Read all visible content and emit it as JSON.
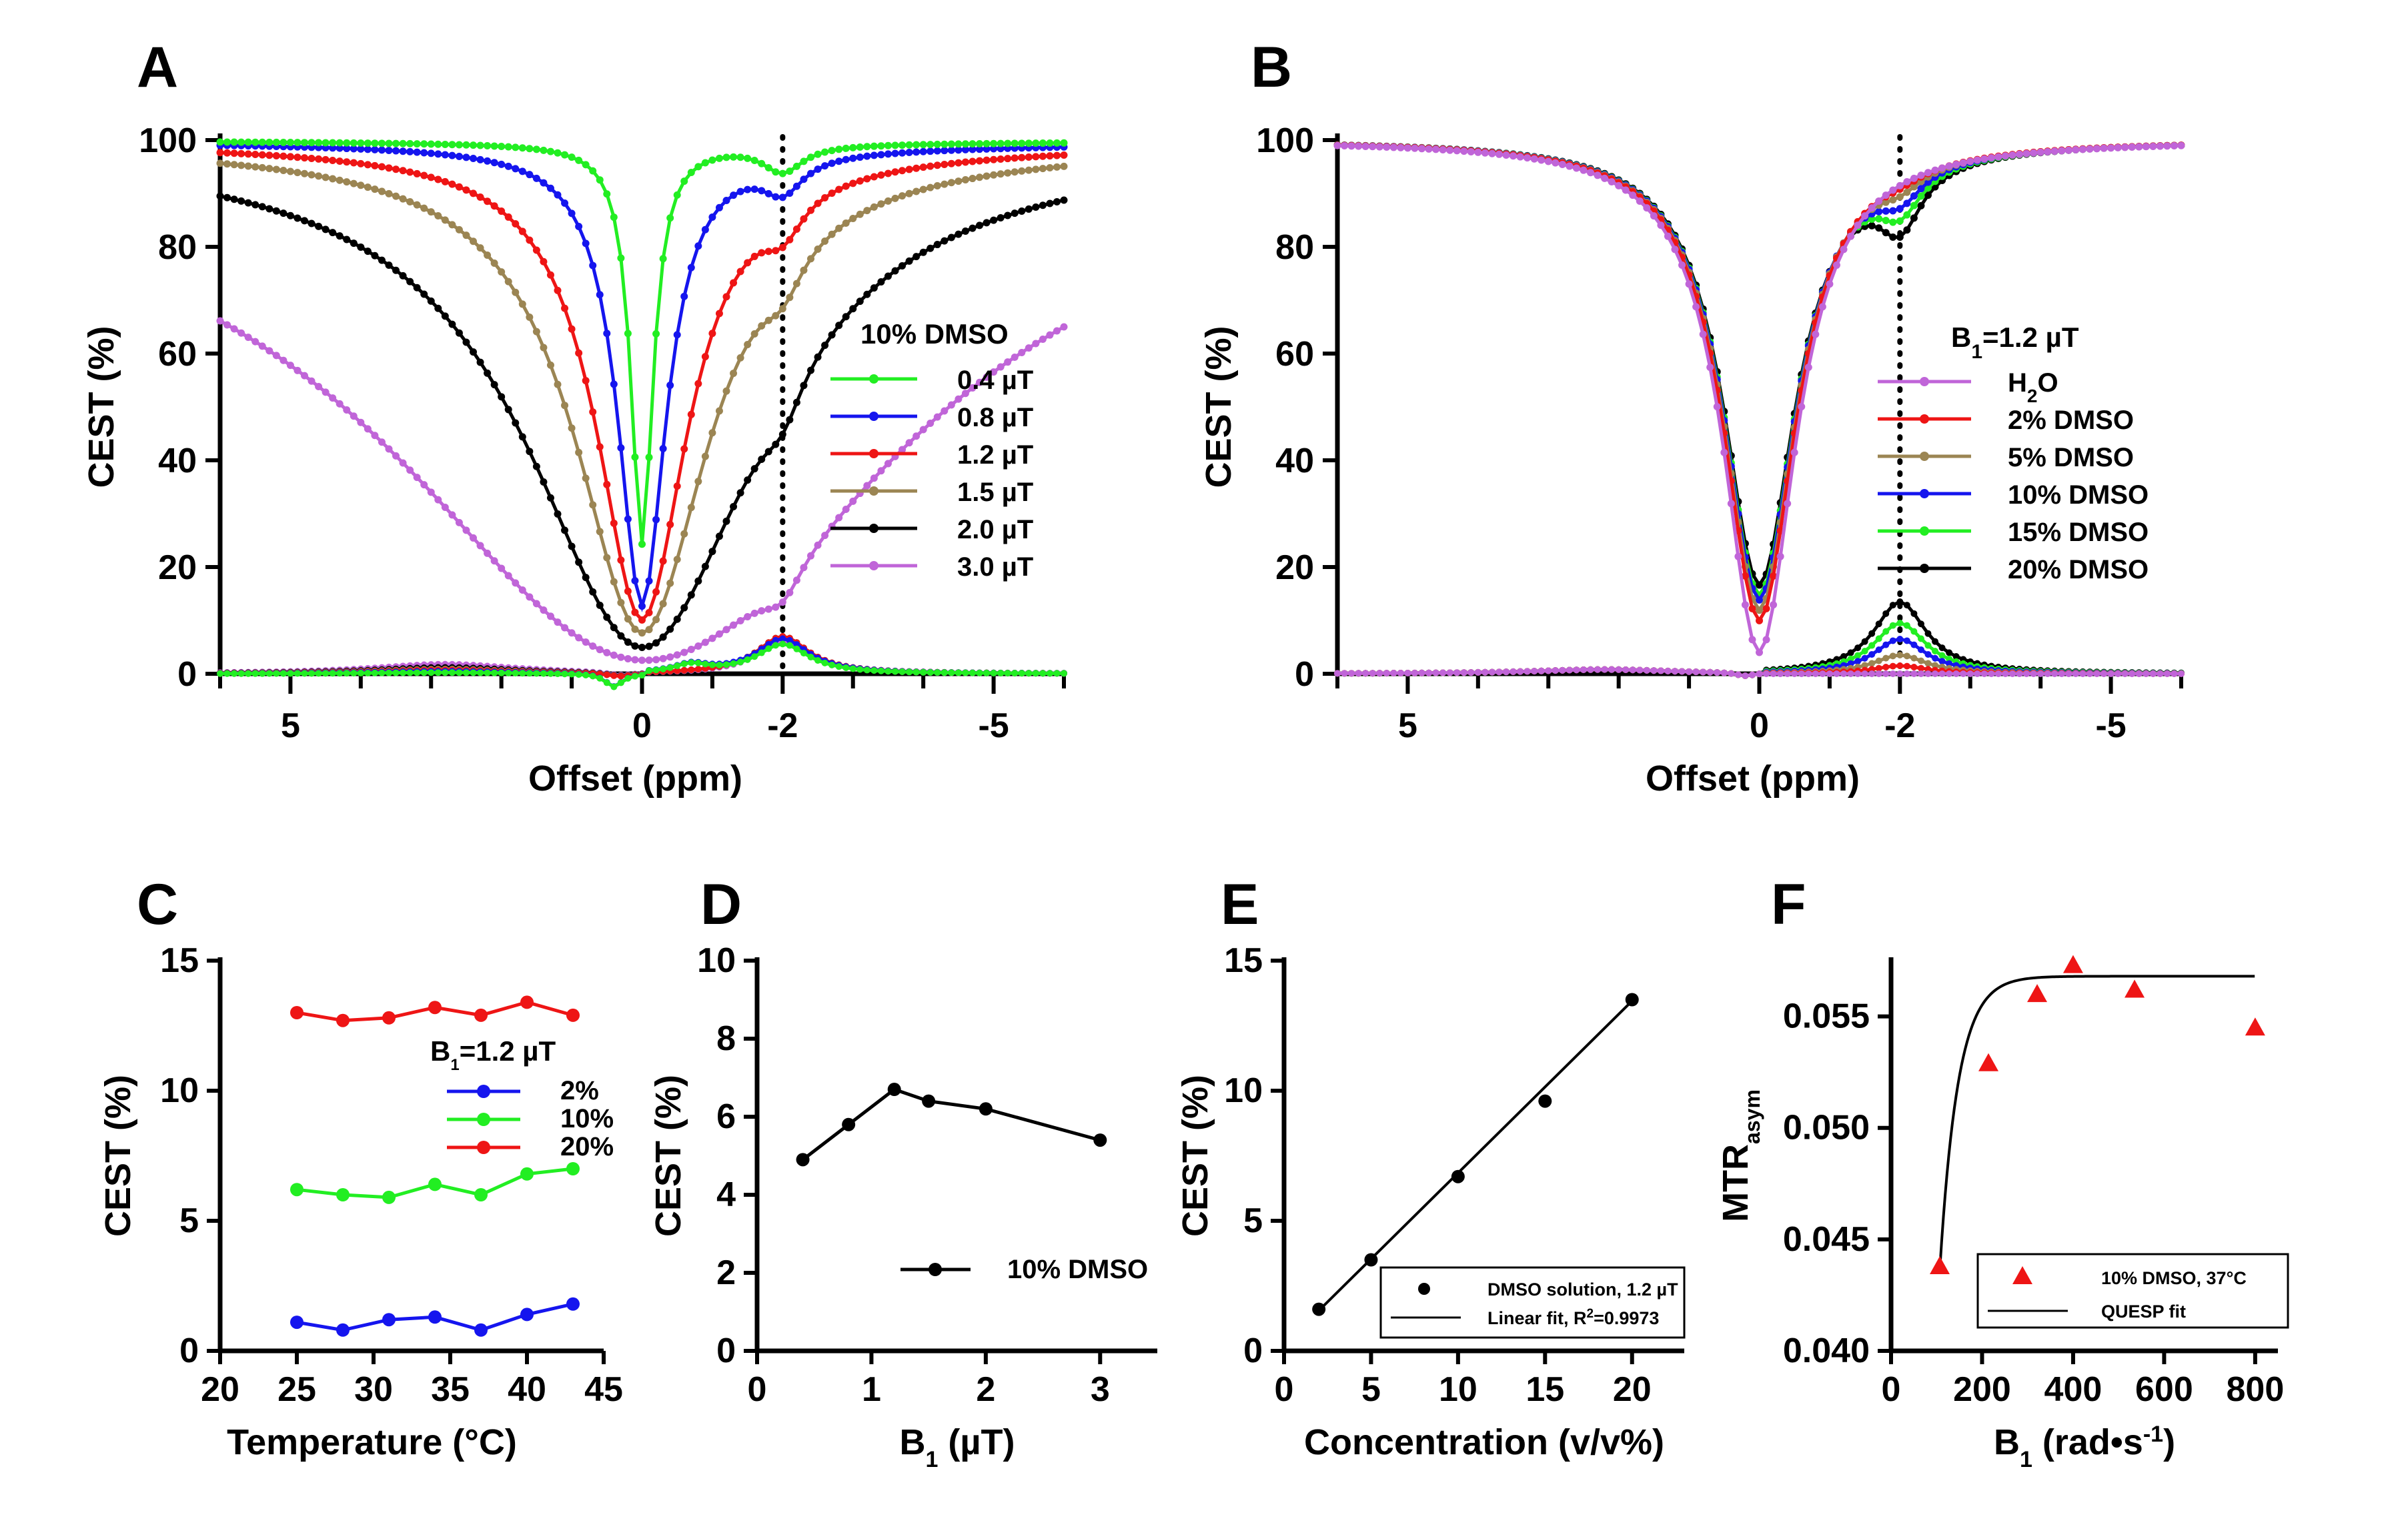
{
  "colors": {
    "green": "#22ee22",
    "blue": "#1515ee",
    "red": "#ee1515",
    "olive": "#9b8553",
    "black": "#000000",
    "purple": "#c065d8"
  },
  "chart_data": [
    {
      "panel": "A",
      "type": "line",
      "xlabel": "Offset (ppm)",
      "ylabel": "CEST (%)",
      "xlim": [
        6,
        -6
      ],
      "ylim": [
        0,
        100
      ],
      "xticks": [
        5,
        0,
        -2,
        -5
      ],
      "xtick_labels": [
        "5",
        "0",
        "-2",
        "-5"
      ],
      "yticks": [
        0,
        20,
        40,
        60,
        80,
        100
      ],
      "vline": -2,
      "legend_title": "10% DMSO",
      "series": [
        {
          "name": "0.4 µT",
          "color_key": "green",
          "b1": 0.4,
          "min": 25,
          "depth2": 5
        },
        {
          "name": "0.8 µT",
          "color_key": "blue",
          "b1": 0.8,
          "min": 14,
          "depth2": 6
        },
        {
          "name": "1.2 µT",
          "color_key": "red",
          "b1": 1.2,
          "min": 12,
          "depth2": 6.5
        },
        {
          "name": "1.5 µT",
          "color_key": "olive",
          "b1": 1.5,
          "min": 10,
          "depth2": 6.5
        },
        {
          "name": "2.0 µT",
          "color_key": "black",
          "b1": 2.0,
          "min": 8,
          "depth2": 6.5
        },
        {
          "name": "3.0 µT",
          "color_key": "purple",
          "b1": 3.0,
          "min": 7,
          "depth2": 5.5
        }
      ]
    },
    {
      "panel": "B",
      "type": "line",
      "xlabel": "Offset (ppm)",
      "ylabel": "CEST (%)",
      "xlim": [
        6,
        -6
      ],
      "ylim": [
        0,
        100
      ],
      "xticks": [
        5,
        0,
        -2,
        -5
      ],
      "xtick_labels": [
        "5",
        "0",
        "-2",
        "-5"
      ],
      "yticks": [
        0,
        20,
        40,
        60,
        80,
        100
      ],
      "vline": -2,
      "legend_title_main": "B",
      "legend_title_sub": "1",
      "legend_title_rest": "=1.2 µT",
      "series": [
        {
          "name_main": "H",
          "name_sub": "2",
          "name_rest": "O",
          "color_key": "purple",
          "depth2": 0,
          "min": 4
        },
        {
          "name_main": "2% DMSO",
          "name_sub": "",
          "name_rest": "",
          "color_key": "red",
          "depth2": 1.5,
          "min": 10
        },
        {
          "name_main": "5% DMSO",
          "name_sub": "",
          "name_rest": "",
          "color_key": "olive",
          "depth2": 3.5,
          "min": 12
        },
        {
          "name_main": "10% DMSO",
          "name_sub": "",
          "name_rest": "",
          "color_key": "blue",
          "depth2": 6.5,
          "min": 14
        },
        {
          "name_main": "15% DMSO",
          "name_sub": "",
          "name_rest": "",
          "color_key": "green",
          "depth2": 9.5,
          "min": 15
        },
        {
          "name_main": "20% DMSO",
          "name_sub": "",
          "name_rest": "",
          "color_key": "black",
          "depth2": 13.5,
          "min": 17
        }
      ]
    },
    {
      "panel": "C",
      "type": "line",
      "xlabel": "Temperature (°C)",
      "ylabel": "CEST (%)",
      "xlim": [
        20,
        45
      ],
      "ylim": [
        0,
        15
      ],
      "xticks": [
        20,
        25,
        30,
        35,
        40,
        45
      ],
      "yticks": [
        0,
        5,
        10,
        15
      ],
      "legend_title_main": "B",
      "legend_title_sub": "1",
      "legend_title_rest": "=1.2 µT",
      "x": [
        25,
        28,
        31,
        34,
        37,
        40,
        43
      ],
      "series": [
        {
          "name": "2%",
          "color_key": "blue",
          "values": [
            1.1,
            0.8,
            1.2,
            1.3,
            0.8,
            1.4,
            1.8
          ]
        },
        {
          "name": "10%",
          "color_key": "green",
          "values": [
            6.2,
            6.0,
            5.9,
            6.4,
            6.0,
            6.8,
            7.0
          ]
        },
        {
          "name": "20%",
          "color_key": "red",
          "values": [
            13.0,
            12.7,
            12.8,
            13.2,
            12.9,
            13.4,
            12.9
          ]
        }
      ]
    },
    {
      "panel": "D",
      "type": "line",
      "xlabel_main": "B",
      "xlabel_sub": "1",
      "xlabel_rest": " (µT)",
      "ylabel": "CEST (%)",
      "xlim": [
        0,
        3.5
      ],
      "ylim": [
        0,
        10
      ],
      "xticks": [
        0,
        1,
        2,
        3
      ],
      "yticks": [
        0,
        2,
        4,
        6,
        8,
        10
      ],
      "series": [
        {
          "name": "10% DMSO",
          "color_key": "black",
          "x": [
            0.4,
            0.8,
            1.2,
            1.5,
            2.0,
            3.0
          ],
          "values": [
            4.9,
            5.8,
            6.7,
            6.4,
            6.2,
            5.4
          ]
        }
      ]
    },
    {
      "panel": "E",
      "type": "scatter",
      "xlabel": "Concentration (v/v%)",
      "ylabel": "CEST (%)",
      "xlim": [
        0,
        23
      ],
      "ylim": [
        0,
        15
      ],
      "xticks": [
        0,
        5,
        10,
        15,
        20
      ],
      "yticks": [
        0,
        5,
        10,
        15
      ],
      "x": [
        2,
        5,
        10,
        15,
        20
      ],
      "values": [
        1.6,
        3.5,
        6.7,
        9.6,
        13.5
      ],
      "fit": {
        "x": [
          2,
          20
        ],
        "y": [
          1.55,
          13.45
        ]
      },
      "legend_points": "DMSO solution, 1.2 µT",
      "legend_fit_main": "Linear fit, R",
      "legend_fit_sup": "2",
      "legend_fit_rest": "=0.9973"
    },
    {
      "panel": "F",
      "type": "scatter",
      "xlabel_main": "B",
      "xlabel_sub": "1",
      "xlabel_rest": " (rad•s",
      "xlabel_sup": "-1",
      "xlabel_end": ")",
      "ylabel_main": "MTR",
      "ylabel_sub": "asym",
      "xlim": [
        0,
        850
      ],
      "ylim": [
        0.04,
        0.0575
      ],
      "xticks": [
        0,
        200,
        400,
        600,
        800
      ],
      "yticks": [
        0.04,
        0.045,
        0.05,
        0.055
      ],
      "ytick_labels": [
        "0.040",
        "0.045",
        "0.050",
        "0.055"
      ],
      "x": [
        107,
        214,
        321,
        400,
        535,
        800
      ],
      "values": [
        0.0438,
        0.0529,
        0.056,
        0.0573,
        0.0562,
        0.0545
      ],
      "legend_points": "10% DMSO, 37°C",
      "legend_fit": "QUESP fit"
    }
  ]
}
